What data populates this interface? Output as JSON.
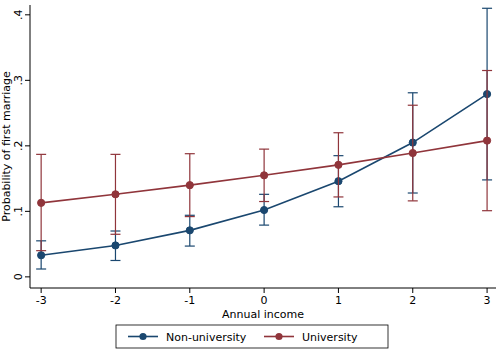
{
  "chart_data": {
    "type": "line",
    "x_label": "Annual income",
    "y_label": "Probability of first marriage",
    "x": [
      -3,
      -2,
      -1,
      0,
      1,
      2,
      3
    ],
    "xlim": [
      -3.15,
      3.12
    ],
    "xticks": [
      -3,
      -2,
      -1,
      0,
      1,
      2,
      3
    ],
    "ylim": [
      -0.017,
      0.415
    ],
    "yticks": [
      0,
      {
        "value": 0.1,
        "label": ".1"
      },
      {
        "value": 0.2,
        "label": ".2"
      },
      {
        "value": 0.3,
        "label": ".3"
      },
      {
        "value": 0.4,
        "label": ".4"
      }
    ],
    "grid": false,
    "legend": "bottom",
    "series": [
      {
        "name": "Non-university",
        "color": "#1a476f",
        "marker": "circle",
        "values": [
          0.033,
          0.048,
          0.071,
          0.102,
          0.146,
          0.205,
          0.279
        ],
        "lower": [
          0.012,
          0.025,
          0.047,
          0.079,
          0.107,
          0.128,
          0.148
        ],
        "upper": [
          0.055,
          0.07,
          0.094,
          0.126,
          0.185,
          0.281,
          0.41
        ]
      },
      {
        "name": "University",
        "color": "#90353b",
        "marker": "circle",
        "values": [
          0.113,
          0.126,
          0.14,
          0.155,
          0.171,
          0.189,
          0.208
        ],
        "lower": [
          0.04,
          0.065,
          0.092,
          0.115,
          0.122,
          0.116,
          0.101
        ],
        "upper": [
          0.187,
          0.187,
          0.188,
          0.195,
          0.22,
          0.262,
          0.315
        ]
      }
    ]
  }
}
